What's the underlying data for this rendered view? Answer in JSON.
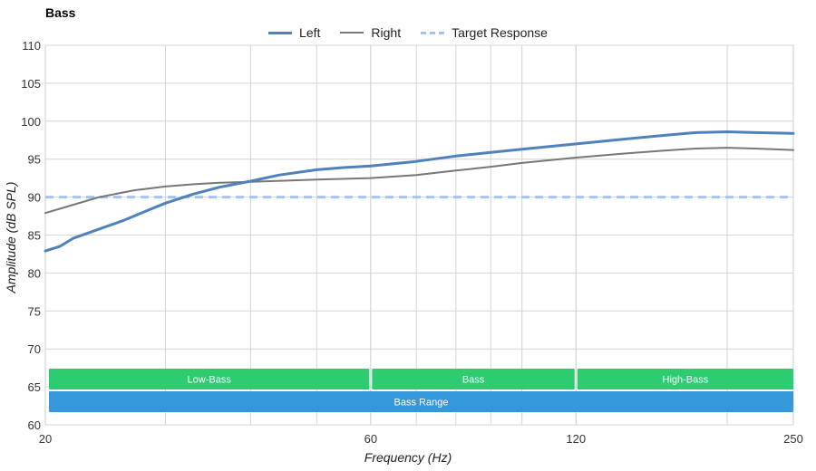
{
  "chart_data": {
    "type": "line",
    "title": "Bass",
    "xlabel": "Frequency (Hz)",
    "ylabel": "Amplitude (dB SPL)",
    "x_scale": "log",
    "xlim": [
      20,
      250
    ],
    "ylim": [
      60,
      110
    ],
    "x_ticks": [
      {
        "value": 20,
        "label": "20"
      },
      {
        "value": 60,
        "label": "60"
      },
      {
        "value": 120,
        "label": "120"
      },
      {
        "value": 250,
        "label": "250"
      }
    ],
    "x_minor_gridlines": [
      30,
      40,
      50,
      70,
      80,
      90,
      100,
      200
    ],
    "y_ticks": [
      60,
      65,
      70,
      75,
      80,
      85,
      90,
      95,
      100,
      105,
      110
    ],
    "grid": true,
    "legend_position": "top-center",
    "series": [
      {
        "name": "Left",
        "color": "#4f81bd",
        "style": "solid-thick",
        "points": [
          [
            20,
            82.9
          ],
          [
            21,
            83.5
          ],
          [
            22,
            84.6
          ],
          [
            24,
            85.8
          ],
          [
            26,
            86.9
          ],
          [
            28,
            88.1
          ],
          [
            30,
            89.2
          ],
          [
            33,
            90.4
          ],
          [
            36,
            91.3
          ],
          [
            40,
            92.1
          ],
          [
            44,
            92.9
          ],
          [
            50,
            93.6
          ],
          [
            55,
            93.9
          ],
          [
            60,
            94.1
          ],
          [
            70,
            94.7
          ],
          [
            80,
            95.4
          ],
          [
            90,
            95.9
          ],
          [
            100,
            96.3
          ],
          [
            120,
            97.0
          ],
          [
            140,
            97.6
          ],
          [
            160,
            98.1
          ],
          [
            180,
            98.5
          ],
          [
            200,
            98.6
          ],
          [
            220,
            98.5
          ],
          [
            250,
            98.4
          ]
        ]
      },
      {
        "name": "Right",
        "color": "#777777",
        "style": "solid",
        "points": [
          [
            20,
            87.9
          ],
          [
            22,
            89.0
          ],
          [
            24,
            90.0
          ],
          [
            27,
            90.9
          ],
          [
            30,
            91.4
          ],
          [
            33,
            91.7
          ],
          [
            36,
            91.9
          ],
          [
            40,
            92.0
          ],
          [
            50,
            92.3
          ],
          [
            60,
            92.5
          ],
          [
            70,
            92.9
          ],
          [
            80,
            93.5
          ],
          [
            90,
            94.0
          ],
          [
            100,
            94.5
          ],
          [
            120,
            95.2
          ],
          [
            140,
            95.7
          ],
          [
            160,
            96.1
          ],
          [
            180,
            96.4
          ],
          [
            200,
            96.5
          ],
          [
            220,
            96.4
          ],
          [
            250,
            96.2
          ]
        ]
      },
      {
        "name": "Target Response",
        "color": "#a4c2f4",
        "style": "dashed",
        "points": [
          [
            20,
            90
          ],
          [
            250,
            90
          ]
        ]
      }
    ],
    "bands": [
      {
        "label": "Low-Bass",
        "from": 20,
        "to": 60,
        "color": "#2ecc71"
      },
      {
        "label": "Bass",
        "from": 60,
        "to": 120,
        "color": "#2ecc71"
      },
      {
        "label": "High-Bass",
        "from": 120,
        "to": 250,
        "color": "#2ecc71"
      },
      {
        "label": "Bass Range",
        "from": 20,
        "to": 250,
        "color": "#3498db"
      }
    ]
  }
}
